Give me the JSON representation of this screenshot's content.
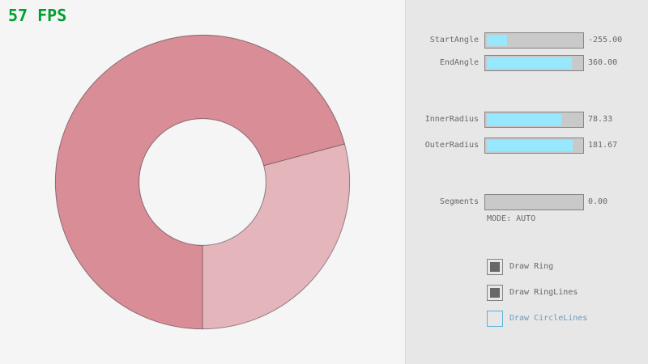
{
  "fps_text": "57 FPS",
  "colors": {
    "fps": "#009E2F",
    "canvas_bg": "#F5F5F5",
    "panel_bg": "#E7E7E7",
    "divider": "#D9D9D9",
    "text": "#686868",
    "slider_border": "#838383",
    "slider_track": "#C9C9C9",
    "slider_fill": "#97E8FF",
    "check_fill": "#686868",
    "focus_border": "#5BB2D9",
    "focus_text": "#6C9BBC",
    "ring_base": "#E5B5BC",
    "ring_overlap": "#D88D97",
    "ring_lines": "rgba(0,0,0,0.4)"
  },
  "controls": {
    "sliders": [
      {
        "label": "StartAngle",
        "value": "-255.00",
        "fill_pct": 21.7
      },
      {
        "label": "EndAngle",
        "value": "360.00",
        "fill_pct": 90.0
      },
      {
        "label": "InnerRadius",
        "value": "78.33",
        "fill_pct": 78.3
      },
      {
        "label": "OuterRadius",
        "value": "181.67",
        "fill_pct": 90.8
      },
      {
        "label": "Segments",
        "value": "0.00",
        "fill_pct": 0
      }
    ],
    "mode_text": "MODE: AUTO",
    "checkboxes": [
      {
        "label": "Draw Ring",
        "checked": true,
        "focused": false
      },
      {
        "label": "Draw RingLines",
        "checked": true,
        "focused": false
      },
      {
        "label": "Draw CircleLines",
        "checked": false,
        "focused": true
      }
    ]
  },
  "chart_data": {
    "type": "ring",
    "center": [
      250,
      225
    ],
    "inner_radius": 78.33,
    "outer_radius": 181.67,
    "start_angle": -255,
    "end_angle": 360,
    "segments": 0,
    "mode": "AUTO",
    "note_overlap_deg": 255,
    "note_single_deg": 105
  }
}
